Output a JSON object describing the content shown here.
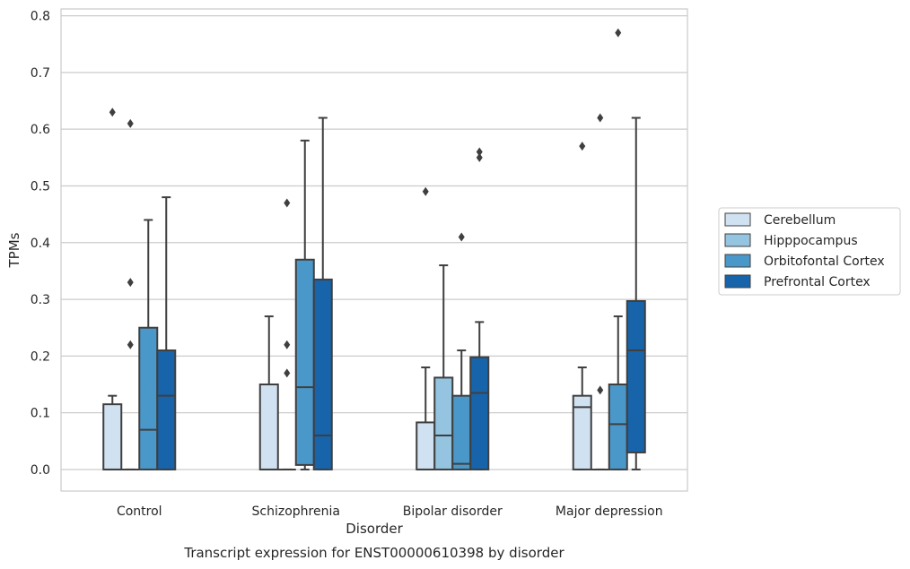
{
  "chart_data": {
    "type": "box",
    "caption": "Transcript expression for ENST00000610398 by disorder",
    "xlabel": "Disorder",
    "ylabel": "TPMs",
    "ylim": [
      -0.038,
      0.812
    ],
    "yticks": [
      0.0,
      0.1,
      0.2,
      0.3,
      0.4,
      0.5,
      0.6,
      0.7,
      0.8
    ],
    "ytick_labels": [
      "0.0",
      "0.1",
      "0.2",
      "0.3",
      "0.4",
      "0.5",
      "0.6",
      "0.7",
      "0.8"
    ],
    "grid": true,
    "legend_position": "right",
    "categories": [
      "Control",
      "Schizophrenia",
      "Bipolar disorder",
      "Major depression"
    ],
    "series": [
      {
        "name": "Cerebellum",
        "color": "#d0e1f2",
        "boxes": [
          {
            "q1": 0.0,
            "median": 0.0,
            "q3": 0.115,
            "whisker_low": 0.0,
            "whisker_high": 0.13,
            "outliers": [
              0.63
            ]
          },
          {
            "q1": 0.0,
            "median": 0.0,
            "q3": 0.15,
            "whisker_low": 0.0,
            "whisker_high": 0.27,
            "outliers": []
          },
          {
            "q1": 0.0,
            "median": 0.0,
            "q3": 0.083,
            "whisker_low": 0.0,
            "whisker_high": 0.18,
            "outliers": [
              0.49
            ]
          },
          {
            "q1": 0.0,
            "median": 0.11,
            "q3": 0.13,
            "whisker_low": 0.0,
            "whisker_high": 0.18,
            "outliers": [
              0.57
            ]
          }
        ]
      },
      {
        "name": "Hipppocampus",
        "color": "#94c4df",
        "boxes": [
          {
            "q1": 0.0,
            "median": 0.0,
            "q3": 0.0,
            "whisker_low": 0.0,
            "whisker_high": 0.0,
            "outliers": [
              0.61,
              0.33,
              0.22
            ]
          },
          {
            "q1": 0.0,
            "median": 0.0,
            "q3": 0.0,
            "whisker_low": 0.0,
            "whisker_high": 0.0,
            "outliers": [
              0.47,
              0.22,
              0.17
            ]
          },
          {
            "q1": 0.0,
            "median": 0.06,
            "q3": 0.162,
            "whisker_low": 0.0,
            "whisker_high": 0.36,
            "outliers": []
          },
          {
            "q1": 0.0,
            "median": 0.0,
            "q3": 0.0,
            "whisker_low": 0.0,
            "whisker_high": 0.0,
            "outliers": [
              0.62,
              0.14
            ]
          }
        ]
      },
      {
        "name": "Orbitofontal Cortex",
        "color": "#4a98c9",
        "boxes": [
          {
            "q1": 0.0,
            "median": 0.07,
            "q3": 0.25,
            "whisker_low": 0.0,
            "whisker_high": 0.44,
            "outliers": []
          },
          {
            "q1": 0.008,
            "median": 0.145,
            "q3": 0.37,
            "whisker_low": 0.0,
            "whisker_high": 0.58,
            "outliers": []
          },
          {
            "q1": 0.0,
            "median": 0.01,
            "q3": 0.13,
            "whisker_low": 0.0,
            "whisker_high": 0.21,
            "outliers": [
              0.41
            ]
          },
          {
            "q1": 0.0,
            "median": 0.08,
            "q3": 0.15,
            "whisker_low": 0.0,
            "whisker_high": 0.27,
            "outliers": [
              0.77
            ]
          }
        ]
      },
      {
        "name": "Prefrontal Cortex",
        "color": "#1764ab",
        "boxes": [
          {
            "q1": 0.0,
            "median": 0.13,
            "q3": 0.21,
            "whisker_low": 0.0,
            "whisker_high": 0.48,
            "outliers": []
          },
          {
            "q1": 0.0,
            "median": 0.06,
            "q3": 0.335,
            "whisker_low": 0.0,
            "whisker_high": 0.62,
            "outliers": []
          },
          {
            "q1": 0.0,
            "median": 0.135,
            "q3": 0.198,
            "whisker_low": 0.0,
            "whisker_high": 0.26,
            "outliers": [
              0.56,
              0.55
            ]
          },
          {
            "q1": 0.03,
            "median": 0.21,
            "q3": 0.297,
            "whisker_low": 0.0,
            "whisker_high": 0.62,
            "outliers": []
          }
        ]
      }
    ]
  }
}
